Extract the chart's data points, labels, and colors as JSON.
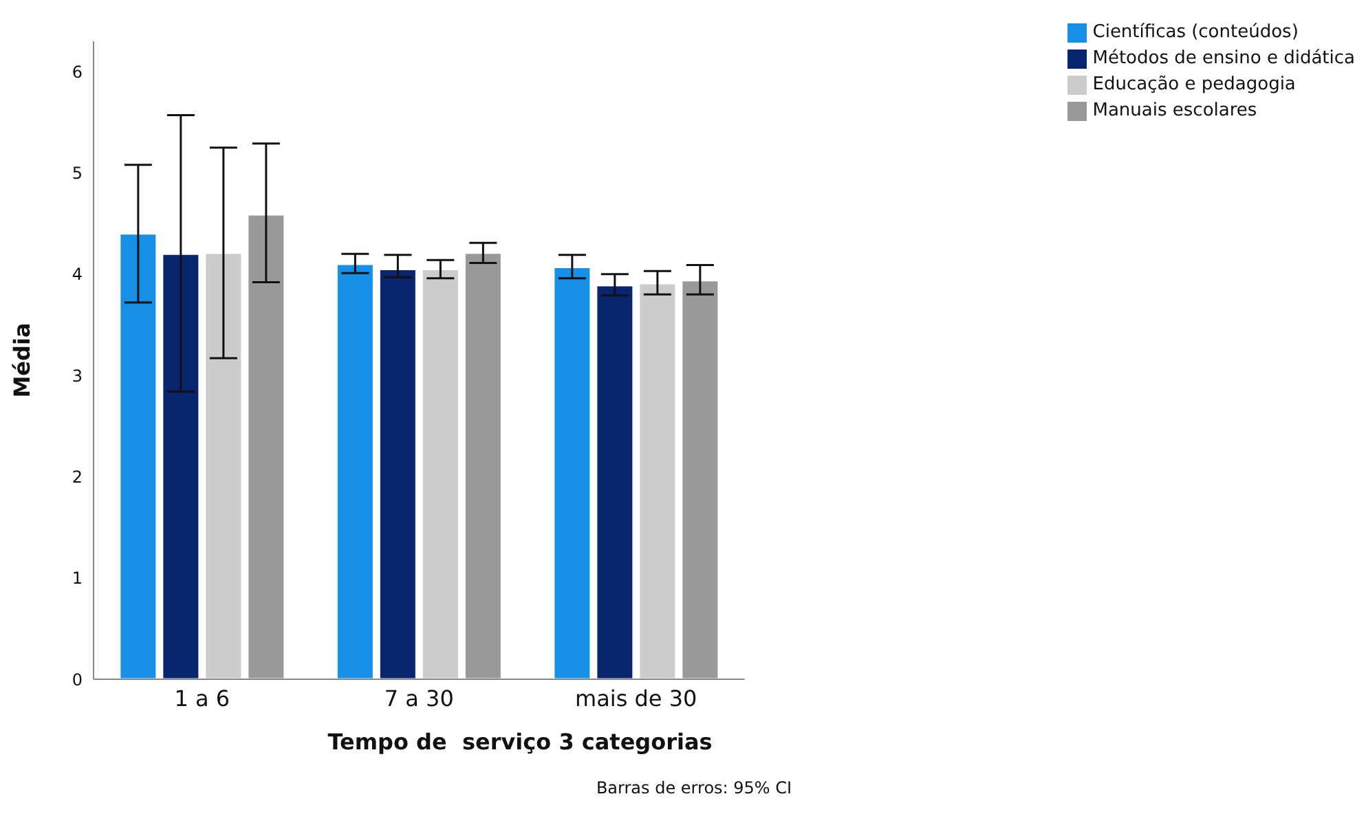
{
  "chart_data": {
    "type": "bar",
    "xlabel": "Tempo de  serviço 3 categorias",
    "ylabel": "Média",
    "annotations": [
      "Barras de erros: 95% CI"
    ],
    "categories": [
      "1 a 6",
      "7 a 30",
      "mais de 30"
    ],
    "series": [
      {
        "name": "Científicas (conteúdos)",
        "color": "#1590e6",
        "values": [
          4.4,
          4.1,
          4.07
        ],
        "errors": [
          [
            3.72,
            5.08
          ],
          [
            4.01,
            4.2
          ],
          [
            3.96,
            4.19
          ]
        ]
      },
      {
        "name": "Métodos de ensino e didática",
        "color": "#0a2570",
        "values": [
          4.2,
          4.05,
          3.89
        ],
        "errors": [
          [
            2.84,
            5.57
          ],
          [
            3.97,
            4.19
          ],
          [
            3.79,
            4.0
          ]
        ]
      },
      {
        "name": "Educação e pedagogia",
        "color": "#cccccc",
        "values": [
          4.21,
          4.05,
          3.91
        ],
        "errors": [
          [
            3.17,
            5.25
          ],
          [
            3.96,
            4.14
          ],
          [
            3.8,
            4.03
          ]
        ]
      },
      {
        "name": "Manuais escolares",
        "color": "#999999",
        "values": [
          4.59,
          4.21,
          3.94
        ],
        "errors": [
          [
            3.92,
            5.29
          ],
          [
            4.11,
            4.31
          ],
          [
            3.8,
            4.09
          ]
        ]
      }
    ],
    "ylim": [
      0,
      6.3
    ],
    "yticks": [
      0,
      1,
      2,
      3,
      4,
      5,
      6
    ],
    "grid": false,
    "legend": "top right"
  }
}
